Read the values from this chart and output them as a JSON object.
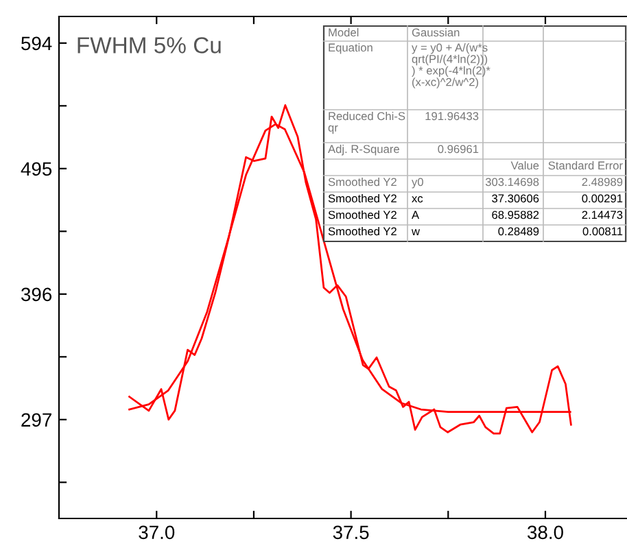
{
  "chart_data": {
    "type": "line",
    "title": "FWHM 5% Cu",
    "xlim": [
      36.749,
      38.21
    ],
    "ylim": [
      219,
      615
    ],
    "xticks": [
      {
        "value": 37.0,
        "label": "37.0"
      },
      {
        "value": 37.25,
        "label": null
      },
      37.5,
      {
        "value": 37.75,
        "label": null
      },
      {
        "value": 38.0,
        "label": "38.0"
      }
    ],
    "yticks": [
      {
        "value": 247.5,
        "label": null
      },
      297,
      {
        "value": 346.5,
        "label": null
      },
      396,
      {
        "value": 445.5,
        "label": null
      },
      495,
      {
        "value": 544.5,
        "label": null
      },
      594
    ],
    "grid": false,
    "legend": false,
    "marker": "none",
    "line_style": "solid",
    "series": [
      {
        "color": "#ff0000",
        "x": [
          36.93,
          36.98,
          37.012,
          37.031,
          37.047,
          37.08,
          37.098,
          37.116,
          37.151,
          37.186,
          37.23,
          37.251,
          37.28,
          37.296,
          37.313,
          37.331,
          37.363,
          37.384,
          37.41,
          37.43,
          37.445,
          37.465,
          37.487,
          37.531,
          37.545,
          37.566,
          37.598,
          37.616,
          37.634,
          37.649,
          37.665,
          37.683,
          37.714,
          37.73,
          37.749,
          37.781,
          37.816,
          37.83,
          37.846,
          37.867,
          37.883,
          37.9,
          37.928,
          37.966,
          37.985,
          38.017,
          38.032,
          38.052,
          38.066
        ],
        "values": [
          315,
          304,
          321,
          297,
          304,
          352,
          348,
          361,
          397,
          441,
          504,
          501,
          503,
          536,
          527,
          545,
          520,
          484,
          455,
          401,
          397,
          403,
          394,
          340,
          337,
          346,
          323,
          320,
          307,
          311,
          289,
          299,
          305,
          291,
          287,
          293,
          295,
          300,
          291,
          286,
          286,
          306,
          307,
          287,
          295,
          336,
          339,
          325,
          293
        ]
      },
      {
        "color": "#ff0000",
        "x": [
          36.93,
          36.98,
          37.03,
          37.08,
          37.13,
          37.18,
          37.23,
          37.28,
          37.306,
          37.33,
          37.38,
          37.43,
          37.48,
          37.53,
          37.58,
          37.63,
          37.68,
          37.75,
          37.85,
          37.95,
          38.064
        ],
        "values": [
          305,
          309,
          320,
          343,
          382,
          435,
          490,
          525,
          530,
          526,
          492,
          438,
          384,
          344,
          321,
          310,
          305,
          303,
          303,
          303,
          303
        ]
      }
    ],
    "annotations": [
      "Model",
      "Gaussian",
      "Equation",
      "y = y0 + A/(w*s\nqrt(PI/(4*ln(2)))\n) * exp(-4*ln(2)*\n(x-xc)^2/w^2)",
      "Reduced Chi-S\nqr",
      "191.96433",
      "Adj. R-Square",
      "0.96961",
      "Value",
      "Standard Error",
      "Smoothed Y2",
      "y0",
      "303.14698",
      "2.48989",
      "Smoothed Y2",
      "xc",
      "37.30606",
      "0.00291",
      "Smoothed Y2",
      "A",
      "68.95882",
      "2.14473",
      "Smoothed Y2",
      "w",
      "0.28489",
      "0.00811"
    ]
  }
}
